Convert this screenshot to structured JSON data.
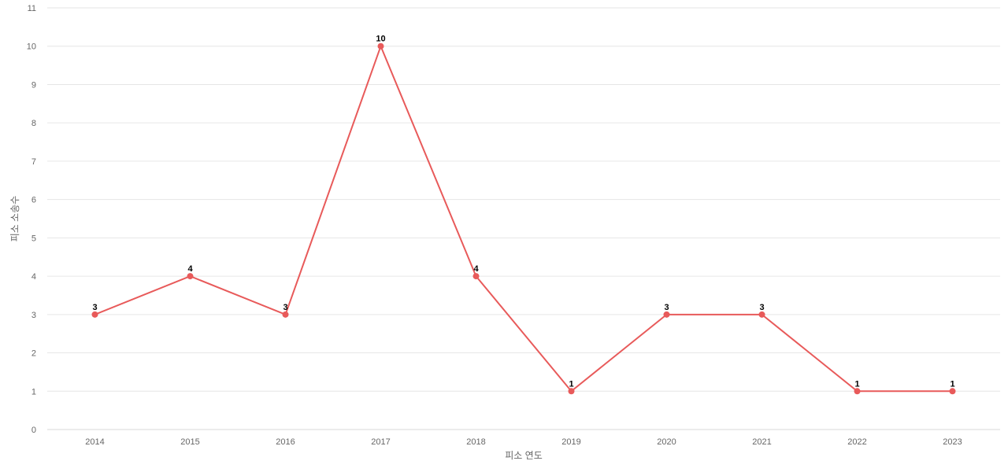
{
  "chart_data": {
    "type": "line",
    "title": "",
    "xlabel": "피소 연도",
    "ylabel": "피소 소송수",
    "categories": [
      "2014",
      "2015",
      "2016",
      "2017",
      "2018",
      "2019",
      "2020",
      "2021",
      "2022",
      "2023"
    ],
    "series": [
      {
        "values": [
          3,
          4,
          3,
          10,
          4,
          1,
          3,
          3,
          1,
          1
        ],
        "color": "#e85a5a"
      }
    ],
    "yticks": [
      0,
      1,
      2,
      3,
      4,
      5,
      6,
      7,
      8,
      9,
      10,
      11
    ],
    "ylim": [
      0,
      11
    ],
    "grid": true,
    "data_labels": true,
    "legend": "none"
  }
}
